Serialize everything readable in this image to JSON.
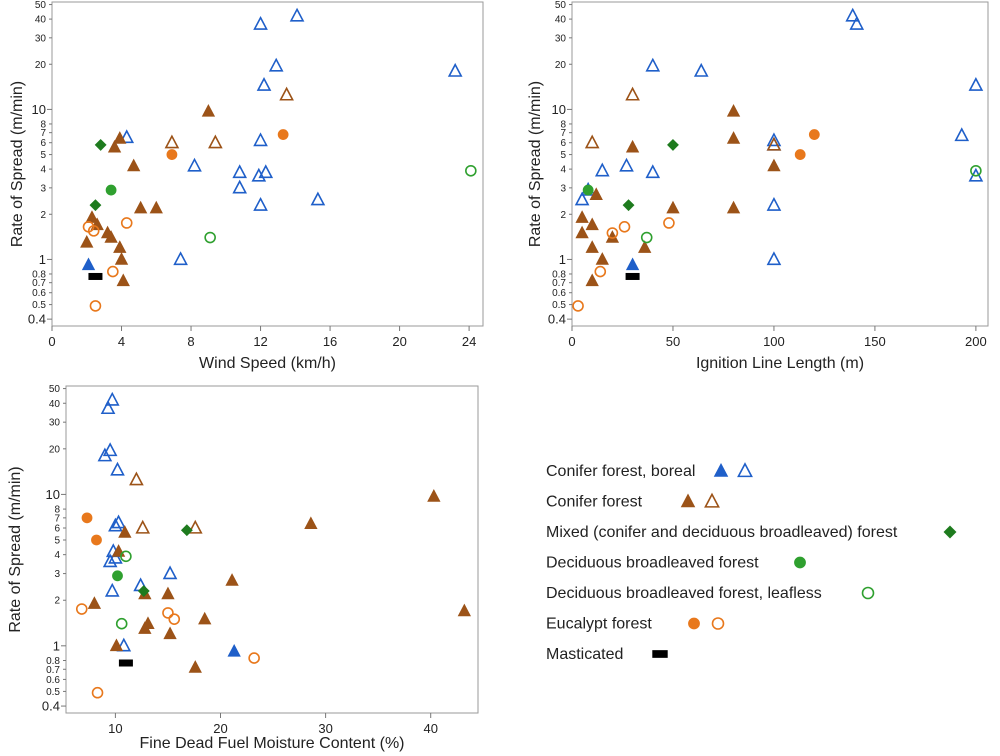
{
  "colors": {
    "boreal": "#1f5fc9",
    "conifer": "#9c5318",
    "mixed": "#1e7b1e",
    "deciduous": "#2fa02f",
    "eucalypt": "#e8781c",
    "masticated": "#000000"
  },
  "legend": [
    {
      "label": "Conifer forest, boreal",
      "color_key": "boreal",
      "markers": [
        "triangle-filled",
        "triangle-open"
      ]
    },
    {
      "label": "Conifer forest",
      "color_key": "conifer",
      "markers": [
        "triangle-filled",
        "triangle-open"
      ]
    },
    {
      "label": "Mixed (conifer and deciduous broadleaved) forest",
      "color_key": "mixed",
      "markers": [
        "diamond-filled"
      ]
    },
    {
      "label": "Deciduous broadleaved forest",
      "color_key": "deciduous",
      "markers": [
        "circle-filled"
      ]
    },
    {
      "label": "Deciduous broadleaved forest, leafless",
      "color_key": "deciduous",
      "markers": [
        "circle-open"
      ]
    },
    {
      "label": "Eucalypt forest",
      "color_key": "eucalypt",
      "markers": [
        "circle-filled",
        "circle-open"
      ]
    },
    {
      "label": "Masticated",
      "color_key": "masticated",
      "markers": [
        "rect-filled"
      ]
    }
  ],
  "chart_data": [
    {
      "type": "scatter",
      "id": "wind",
      "xlabel": "Wind Speed (km/h)",
      "ylabel": "Rate of Spread (m/min)",
      "xlim": [
        0,
        24.8
      ],
      "ylim": [
        0.36,
        52
      ],
      "yscale": "log",
      "xticks": [
        0,
        4,
        8,
        12,
        16,
        20,
        24
      ],
      "yticks": [
        0.4,
        0.5,
        0.6,
        0.7,
        0.8,
        1,
        2,
        3,
        4,
        5,
        6,
        7,
        8,
        10,
        20,
        30,
        40,
        50
      ],
      "series": [
        {
          "name": "Conifer forest, boreal (filled)",
          "marker": "triangle-filled",
          "color_key": "boreal",
          "points": [
            [
              2.1,
              0.92
            ]
          ]
        },
        {
          "name": "Conifer forest, boreal (open)",
          "marker": "triangle-open",
          "color_key": "boreal",
          "points": [
            [
              4.3,
              6.5
            ],
            [
              7.4,
              1.0
            ],
            [
              8.2,
              4.2
            ],
            [
              10.8,
              3.8
            ],
            [
              10.8,
              3.0
            ],
            [
              11.9,
              3.6
            ],
            [
              12.0,
              6.2
            ],
            [
              12.0,
              2.3
            ],
            [
              12.0,
              37
            ],
            [
              12.2,
              14.5
            ],
            [
              12.3,
              3.8
            ],
            [
              12.9,
              19.5
            ],
            [
              14.1,
              42
            ],
            [
              15.3,
              2.5
            ],
            [
              23.2,
              18
            ]
          ]
        },
        {
          "name": "Conifer forest (filled)",
          "marker": "triangle-filled",
          "color_key": "conifer",
          "points": [
            [
              2.0,
              1.3
            ],
            [
              2.3,
              1.9
            ],
            [
              2.6,
              1.7
            ],
            [
              3.2,
              1.5
            ],
            [
              3.4,
              1.4
            ],
            [
              3.6,
              5.6
            ],
            [
              3.9,
              6.4
            ],
            [
              3.9,
              1.2
            ],
            [
              4.0,
              1.0
            ],
            [
              4.1,
              0.72
            ],
            [
              4.7,
              4.2
            ],
            [
              5.1,
              2.2
            ],
            [
              6.0,
              2.2
            ],
            [
              9.0,
              9.7
            ]
          ]
        },
        {
          "name": "Conifer forest (open)",
          "marker": "triangle-open",
          "color_key": "conifer",
          "points": [
            [
              6.9,
              6.0
            ],
            [
              9.4,
              6.0
            ],
            [
              13.5,
              12.5
            ]
          ]
        },
        {
          "name": "Mixed forest",
          "marker": "diamond-filled",
          "color_key": "mixed",
          "points": [
            [
              2.5,
              2.3
            ],
            [
              2.8,
              5.8
            ]
          ]
        },
        {
          "name": "Deciduous broadleaved forest",
          "marker": "circle-filled",
          "color_key": "deciduous",
          "points": [
            [
              3.4,
              2.9
            ]
          ]
        },
        {
          "name": "Deciduous broadleaved forest, leafless",
          "marker": "circle-open",
          "color_key": "deciduous",
          "points": [
            [
              9.1,
              1.4
            ],
            [
              24.1,
              3.9
            ]
          ]
        },
        {
          "name": "Eucalypt forest (filled)",
          "marker": "circle-filled",
          "color_key": "eucalypt",
          "points": [
            [
              6.9,
              5.0
            ],
            [
              13.3,
              6.8
            ]
          ]
        },
        {
          "name": "Eucalypt forest (open)",
          "marker": "circle-open",
          "color_key": "eucalypt",
          "points": [
            [
              2.1,
              1.65
            ],
            [
              2.4,
              1.55
            ],
            [
              2.5,
              0.49
            ],
            [
              3.5,
              0.83
            ],
            [
              4.3,
              1.75
            ]
          ]
        },
        {
          "name": "Masticated",
          "marker": "rect-filled",
          "color_key": "masticated",
          "points": [
            [
              2.5,
              0.77
            ]
          ]
        }
      ]
    },
    {
      "type": "scatter",
      "id": "ignition",
      "xlabel": "Ignition Line Length (m)",
      "ylabel": "Rate of Spread (m/min)",
      "xlim": [
        0,
        206
      ],
      "ylim": [
        0.36,
        52
      ],
      "yscale": "log",
      "xticks": [
        0,
        50,
        100,
        150,
        200
      ],
      "yticks": [
        0.4,
        0.5,
        0.6,
        0.7,
        0.8,
        1,
        2,
        3,
        4,
        5,
        6,
        7,
        8,
        10,
        20,
        30,
        40,
        50
      ],
      "series": [
        {
          "name": "Conifer forest, boreal (filled)",
          "marker": "triangle-filled",
          "color_key": "boreal",
          "points": [
            [
              30,
              0.92
            ]
          ]
        },
        {
          "name": "Conifer forest, boreal (open)",
          "marker": "triangle-open",
          "color_key": "boreal",
          "points": [
            [
              5,
              2.5
            ],
            [
              8,
              2.9
            ],
            [
              15,
              3.9
            ],
            [
              27,
              4.2
            ],
            [
              40,
              3.8
            ],
            [
              40,
              19.5
            ],
            [
              64,
              18
            ],
            [
              100,
              6.2
            ],
            [
              100,
              2.3
            ],
            [
              100,
              1.0
            ],
            [
              100,
              5.8
            ],
            [
              139,
              42
            ],
            [
              141,
              37
            ],
            [
              193,
              6.7
            ],
            [
              200,
              14.5
            ],
            [
              200,
              3.6
            ]
          ]
        },
        {
          "name": "Conifer forest (filled)",
          "marker": "triangle-filled",
          "color_key": "conifer",
          "points": [
            [
              5,
              1.5
            ],
            [
              5,
              1.9
            ],
            [
              10,
              0.72
            ],
            [
              10,
              1.7
            ],
            [
              10,
              1.2
            ],
            [
              12,
              2.7
            ],
            [
              15,
              1.0
            ],
            [
              20,
              1.4
            ],
            [
              36,
              1.2
            ],
            [
              30,
              5.6
            ],
            [
              50,
              2.2
            ],
            [
              80,
              9.7
            ],
            [
              80,
              6.4
            ],
            [
              80,
              2.2
            ],
            [
              100,
              4.2
            ]
          ]
        },
        {
          "name": "Conifer forest (open)",
          "marker": "triangle-open",
          "color_key": "conifer",
          "points": [
            [
              10,
              6.0
            ],
            [
              30,
              12.5
            ],
            [
              100,
              5.8
            ]
          ]
        },
        {
          "name": "Mixed forest",
          "marker": "diamond-filled",
          "color_key": "mixed",
          "points": [
            [
              28,
              2.3
            ],
            [
              50,
              5.8
            ]
          ]
        },
        {
          "name": "Deciduous broadleaved forest",
          "marker": "circle-filled",
          "color_key": "deciduous",
          "points": [
            [
              8,
              2.9
            ]
          ]
        },
        {
          "name": "Deciduous broadleaved forest, leafless",
          "marker": "circle-open",
          "color_key": "deciduous",
          "points": [
            [
              37,
              1.4
            ],
            [
              200,
              3.9
            ]
          ]
        },
        {
          "name": "Eucalypt forest (filled)",
          "marker": "circle-filled",
          "color_key": "eucalypt",
          "points": [
            [
              113,
              5.0
            ],
            [
              120,
              6.8
            ]
          ]
        },
        {
          "name": "Eucalypt forest (open)",
          "marker": "circle-open",
          "color_key": "eucalypt",
          "points": [
            [
              3,
              0.49
            ],
            [
              14,
              0.83
            ],
            [
              20,
              1.5
            ],
            [
              26,
              1.65
            ],
            [
              48,
              1.75
            ]
          ]
        },
        {
          "name": "Masticated",
          "marker": "rect-filled",
          "color_key": "masticated",
          "points": [
            [
              30,
              0.77
            ]
          ]
        }
      ]
    },
    {
      "type": "scatter",
      "id": "moisture",
      "xlabel": "Fine Dead Fuel Moisture Content (%)",
      "ylabel": "Rate of Spread (m/min)",
      "xlim": [
        5.3,
        44.5
      ],
      "ylim": [
        0.36,
        52
      ],
      "yscale": "log",
      "xticks": [
        10,
        20,
        30,
        40
      ],
      "yticks": [
        0.4,
        0.5,
        0.6,
        0.7,
        0.8,
        1,
        2,
        3,
        4,
        5,
        6,
        7,
        8,
        10,
        20,
        30,
        40,
        50
      ],
      "series": [
        {
          "name": "Conifer forest, boreal (filled)",
          "marker": "triangle-filled",
          "color_key": "boreal",
          "points": [
            [
              21.3,
              0.92
            ]
          ]
        },
        {
          "name": "Conifer forest, boreal (open)",
          "marker": "triangle-open",
          "color_key": "boreal",
          "points": [
            [
              9.0,
              18
            ],
            [
              9.3,
              37
            ],
            [
              9.5,
              19.5
            ],
            [
              9.7,
              2.3
            ],
            [
              9.7,
              42
            ],
            [
              9.5,
              3.6
            ],
            [
              9.8,
              4.2
            ],
            [
              10.0,
              3.8
            ],
            [
              10.0,
              6.2
            ],
            [
              10.2,
              14.5
            ],
            [
              10.3,
              6.5
            ],
            [
              10.8,
              1.0
            ],
            [
              12.4,
              2.5
            ],
            [
              15.2,
              3.0
            ]
          ]
        },
        {
          "name": "Conifer forest (filled)",
          "marker": "triangle-filled",
          "color_key": "conifer",
          "points": [
            [
              8.0,
              1.9
            ],
            [
              10.1,
              1.0
            ],
            [
              10.3,
              4.2
            ],
            [
              10.9,
              5.6
            ],
            [
              12.8,
              2.2
            ],
            [
              12.8,
              1.3
            ],
            [
              13.1,
              1.4
            ],
            [
              15.0,
              2.2
            ],
            [
              15.2,
              1.2
            ],
            [
              17.6,
              0.72
            ],
            [
              18.5,
              1.5
            ],
            [
              21.1,
              2.7
            ],
            [
              28.6,
              6.4
            ],
            [
              40.3,
              9.7
            ],
            [
              43.2,
              1.7
            ]
          ]
        },
        {
          "name": "Conifer forest (open)",
          "marker": "triangle-open",
          "color_key": "conifer",
          "points": [
            [
              12.0,
              12.5
            ],
            [
              12.6,
              6.0
            ],
            [
              17.6,
              6.0
            ]
          ]
        },
        {
          "name": "Mixed forest",
          "marker": "diamond-filled",
          "color_key": "mixed",
          "points": [
            [
              12.7,
              2.3
            ],
            [
              16.8,
              5.8
            ]
          ]
        },
        {
          "name": "Deciduous broadleaved forest",
          "marker": "circle-filled",
          "color_key": "deciduous",
          "points": [
            [
              10.2,
              2.9
            ]
          ]
        },
        {
          "name": "Deciduous broadleaved forest, leafless",
          "marker": "circle-open",
          "color_key": "deciduous",
          "points": [
            [
              10.6,
              1.4
            ],
            [
              11.0,
              3.9
            ]
          ]
        },
        {
          "name": "Eucalypt forest (filled)",
          "marker": "circle-filled",
          "color_key": "eucalypt",
          "points": [
            [
              7.3,
              7.0
            ],
            [
              8.2,
              5.0
            ]
          ]
        },
        {
          "name": "Eucalypt forest (open)",
          "marker": "circle-open",
          "color_key": "eucalypt",
          "points": [
            [
              6.8,
              1.75
            ],
            [
              8.3,
              0.49
            ],
            [
              15.0,
              1.65
            ],
            [
              15.6,
              1.5
            ],
            [
              23.2,
              0.83
            ]
          ]
        },
        {
          "name": "Masticated",
          "marker": "rect-filled",
          "color_key": "masticated",
          "points": [
            [
              11.0,
              0.77
            ]
          ]
        }
      ]
    }
  ]
}
